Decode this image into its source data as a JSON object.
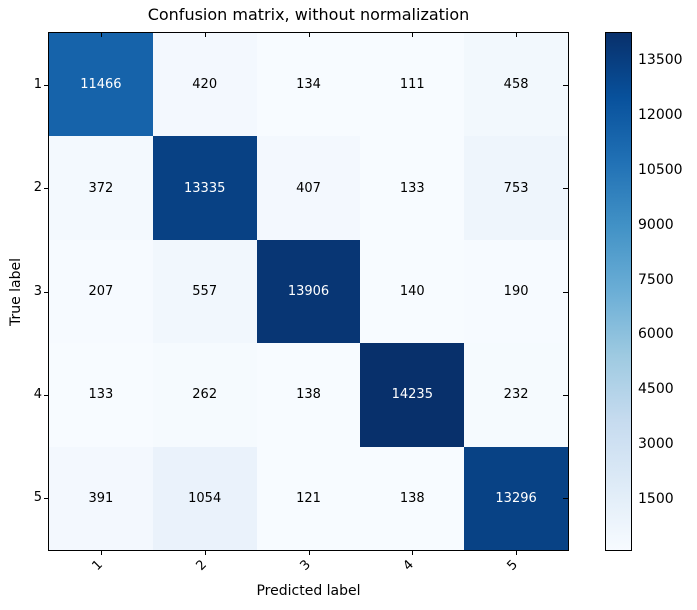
{
  "chart_data": {
    "type": "heatmap",
    "title": "Confusion matrix, without normalization",
    "xlabel": "Predicted label",
    "ylabel": "True label",
    "x_tick_labels": [
      "1",
      "2",
      "3",
      "4",
      "5"
    ],
    "y_tick_labels": [
      "1",
      "2",
      "3",
      "4",
      "5"
    ],
    "matrix": [
      [
        11466,
        420,
        134,
        111,
        458
      ],
      [
        372,
        13335,
        407,
        133,
        753
      ],
      [
        207,
        557,
        13906,
        140,
        190
      ],
      [
        133,
        262,
        138,
        14235,
        232
      ],
      [
        391,
        1054,
        121,
        138,
        13296
      ]
    ],
    "vmin": 111,
    "vmax": 14235,
    "colormap": {
      "name": "Blues",
      "stops": [
        {
          "pos": 0.0,
          "color": "#f7fbff"
        },
        {
          "pos": 0.125,
          "color": "#deebf7"
        },
        {
          "pos": 0.25,
          "color": "#c6dbef"
        },
        {
          "pos": 0.375,
          "color": "#9ecae1"
        },
        {
          "pos": 0.5,
          "color": "#6baed6"
        },
        {
          "pos": 0.625,
          "color": "#4292c6"
        },
        {
          "pos": 0.75,
          "color": "#2171b5"
        },
        {
          "pos": 0.875,
          "color": "#08519c"
        },
        {
          "pos": 1.0,
          "color": "#08306b"
        }
      ]
    },
    "colorbar": {
      "position": "right",
      "ticks": [
        1500,
        3000,
        4500,
        6000,
        7500,
        9000,
        10500,
        12000,
        13500
      ]
    },
    "grid": "off",
    "cell_text_color_light": "#ffffff",
    "cell_text_color_dark": "#000000",
    "axis_color": "#000000",
    "background_color": "#ffffff"
  }
}
